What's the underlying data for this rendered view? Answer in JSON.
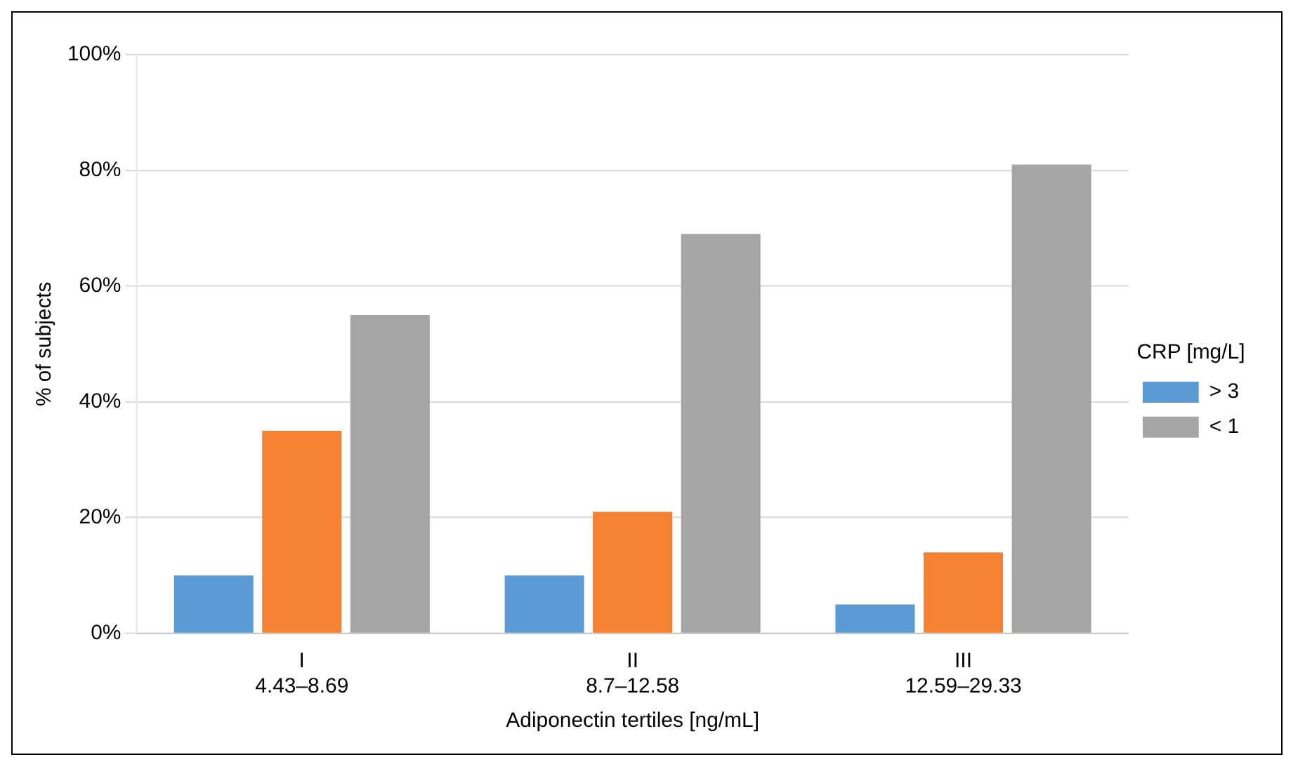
{
  "chart_data": {
    "type": "bar",
    "xlabel": "Adiponectin tertiles [ng/mL]",
    "ylabel": "% of subjects",
    "legend_title": "CRP [mg/L]",
    "categories": [
      "I\n4.43–8.69",
      "II\n8.7–12.58",
      "III\n12.59–29.33"
    ],
    "series": [
      {
        "name": "> 3",
        "color": "#5b9bd5",
        "values": [
          10,
          10,
          5
        ]
      },
      {
        "color": "#f58233",
        "values": [
          35,
          21,
          14
        ]
      },
      {
        "name": "< 1",
        "color": "#a5a5a5",
        "values": [
          55,
          69,
          81
        ]
      }
    ],
    "ylim": [
      0,
      100
    ],
    "yticks": [
      {
        "value": 0,
        "label": "0%"
      },
      {
        "value": 20,
        "label": "20%"
      },
      {
        "value": 40,
        "label": "40%"
      },
      {
        "value": 60,
        "label": "60%"
      },
      {
        "value": 80,
        "label": "80%"
      },
      {
        "value": 100,
        "label": "100%"
      }
    ],
    "grid": "y",
    "legend": "right"
  }
}
